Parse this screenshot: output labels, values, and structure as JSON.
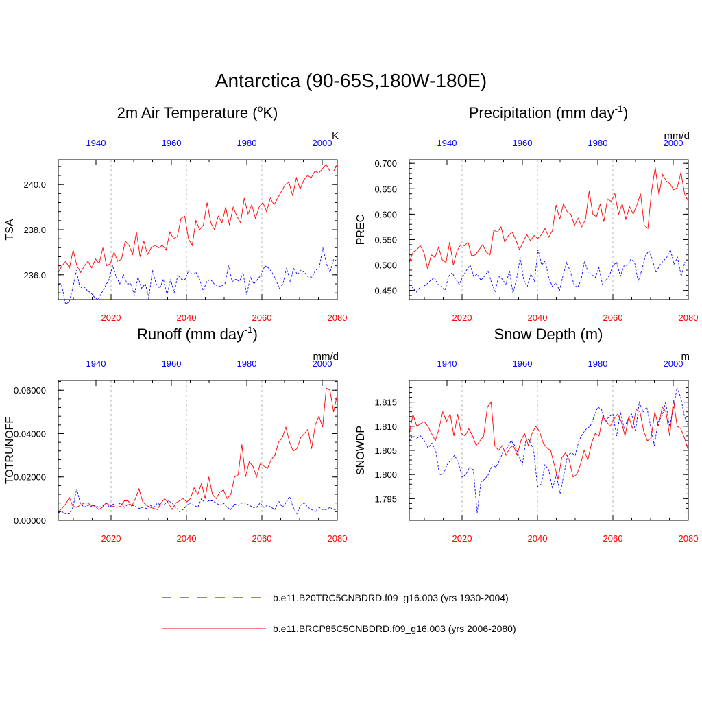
{
  "title": "Antarctica (90-65S,180W-180E)",
  "colors": {
    "present": "#ff0000",
    "past": "#0000ff",
    "grid": "#b0b0b0"
  },
  "legend": [
    {
      "label": "b.e11.B20TRC5CNBDRD.f09_g16.003 (yrs 1930-2004)",
      "style": "dashed",
      "color": "#0000ff"
    },
    {
      "label": "b.e11.BRCP85C5CNBDRD.f09_g16.003 (yrs 2006-2080)",
      "style": "solid",
      "color": "#ff0000"
    }
  ],
  "chart_data": [
    {
      "type": "line",
      "title_main": "2m Air Temperature (",
      "title_sup": "o",
      "title_end": "K)",
      "ylabel": "TSA",
      "units": "K",
      "bottom_axis": {
        "range": [
          2006,
          2080
        ],
        "ticks": [
          "2020",
          "2040",
          "2060",
          "2080"
        ],
        "tick_values": [
          2020,
          2040,
          2060,
          2080
        ]
      },
      "top_axis": {
        "range": [
          1930,
          2004
        ],
        "ticks": [
          "1940",
          "1960",
          "1980",
          "2000"
        ],
        "tick_values": [
          1940,
          1960,
          1980,
          2000
        ]
      },
      "ylim": [
        234.9,
        241.1
      ],
      "yticks": [
        "236.0",
        "238.0",
        "240.0"
      ],
      "ytick_values": [
        236.0,
        238.0,
        240.0
      ],
      "series": [
        {
          "key": "past",
          "values": [
            235.6,
            235.5,
            234.7,
            234.8,
            235.4,
            236.2,
            235.4,
            235.5,
            235.3,
            235.2,
            235.0,
            234.9,
            235.2,
            235.5,
            235.8,
            236.4,
            235.9,
            235.6,
            236.0,
            235.6,
            235.6,
            235.1,
            235.9,
            235.4,
            235.6,
            235.0,
            236.2,
            235.6,
            235.4,
            235.8,
            235.1,
            235.8,
            235.2,
            236.0,
            235.8,
            235.8,
            236.2,
            236.0,
            236.1,
            235.8,
            235.3,
            235.7,
            235.8,
            235.6,
            235.5,
            235.5,
            235.6,
            236.4,
            235.7,
            235.8,
            235.7,
            236.1,
            235.1,
            235.9,
            235.6,
            235.8,
            236.0,
            236.4,
            236.3,
            236.1,
            235.8,
            235.4,
            235.6,
            236.3,
            235.7,
            236.3,
            236.0,
            236.2,
            236.1,
            235.9,
            235.9,
            236.2,
            236.3,
            237.2,
            236.5,
            236.1,
            236.7,
            236.6
          ]
        },
        {
          "key": "present",
          "values": [
            236.1,
            236.4,
            236.6,
            236.3,
            237.1,
            236.4,
            236.1,
            236.4,
            236.6,
            236.3,
            236.7,
            236.5,
            237.2,
            236.4,
            236.5,
            237.0,
            236.6,
            236.7,
            237.5,
            237.3,
            236.9,
            237.9,
            236.8,
            237.5,
            236.9,
            237.2,
            237.3,
            237.2,
            237.3,
            237.1,
            237.9,
            237.6,
            237.7,
            238.5,
            238.6,
            237.6,
            237.3,
            238.4,
            238.0,
            238.2,
            239.2,
            238.3,
            238.0,
            238.6,
            238.3,
            239.0,
            238.2,
            239.0,
            238.6,
            238.3,
            239.4,
            238.7,
            239.1,
            238.5,
            239.0,
            239.2,
            238.8,
            239.4,
            239.1,
            239.4,
            239.7,
            240.0,
            240.1,
            239.5,
            240.3,
            239.8,
            240.2,
            240.4,
            240.3,
            240.6,
            240.5,
            240.7,
            240.9,
            240.6,
            240.6,
            240.9
          ]
        }
      ]
    },
    {
      "type": "line",
      "title_main": "Precipitation (mm day",
      "title_sup": "-1",
      "title_end": ")",
      "ylabel": "PREC",
      "units": "mm/d",
      "bottom_axis": {
        "range": [
          2006,
          2080
        ],
        "ticks": [
          "2020",
          "2040",
          "2060",
          "2080"
        ],
        "tick_values": [
          2020,
          2040,
          2060,
          2080
        ]
      },
      "top_axis": {
        "range": [
          1930,
          2004
        ],
        "ticks": [
          "1940",
          "1960",
          "1980",
          "2000"
        ],
        "tick_values": [
          1940,
          1960,
          1980,
          2000
        ]
      },
      "ylim": [
        0.432,
        0.707
      ],
      "yticks": [
        "0.450",
        "0.500",
        "0.550",
        "0.600",
        "0.650",
        "0.700"
      ],
      "ytick_values": [
        0.45,
        0.5,
        0.55,
        0.6,
        0.65,
        0.7
      ],
      "series": [
        {
          "key": "past",
          "values": [
            0.462,
            0.455,
            0.447,
            0.456,
            0.458,
            0.463,
            0.47,
            0.475,
            0.462,
            0.458,
            0.45,
            0.478,
            0.485,
            0.472,
            0.462,
            0.478,
            0.49,
            0.5,
            0.478,
            0.482,
            0.47,
            0.478,
            0.488,
            0.465,
            0.448,
            0.478,
            0.472,
            0.462,
            0.488,
            0.445,
            0.472,
            0.515,
            0.47,
            0.458,
            0.482,
            0.468,
            0.53,
            0.5,
            0.508,
            0.475,
            0.458,
            0.465,
            0.45,
            0.48,
            0.505,
            0.488,
            0.463,
            0.455,
            0.47,
            0.508,
            0.485,
            0.482,
            0.475,
            0.495,
            0.462,
            0.47,
            0.48,
            0.5,
            0.505,
            0.478,
            0.498,
            0.5,
            0.512,
            0.505,
            0.468,
            0.49,
            0.518,
            0.528,
            0.51,
            0.485,
            0.5,
            0.508,
            0.515,
            0.53,
            0.502,
            0.515,
            0.478,
            0.505,
            0.502
          ]
        },
        {
          "key": "present",
          "values": [
            0.505,
            0.525,
            0.53,
            0.538,
            0.525,
            0.492,
            0.52,
            0.515,
            0.535,
            0.51,
            0.505,
            0.545,
            0.5,
            0.528,
            0.54,
            0.538,
            0.545,
            0.518,
            0.52,
            0.53,
            0.54,
            0.525,
            0.52,
            0.568,
            0.565,
            0.575,
            0.545,
            0.558,
            0.565,
            0.55,
            0.53,
            0.545,
            0.56,
            0.548,
            0.558,
            0.552,
            0.56,
            0.572,
            0.555,
            0.568,
            0.618,
            0.59,
            0.62,
            0.605,
            0.6,
            0.578,
            0.592,
            0.575,
            0.59,
            0.645,
            0.6,
            0.595,
            0.62,
            0.585,
            0.63,
            0.625,
            0.64,
            0.6,
            0.62,
            0.59,
            0.615,
            0.6,
            0.618,
            0.64,
            0.578,
            0.572,
            0.645,
            0.692,
            0.638,
            0.678,
            0.665,
            0.66,
            0.648,
            0.652,
            0.682,
            0.64,
            0.625
          ]
        }
      ]
    },
    {
      "type": "line",
      "title_main": "Runoff (mm day",
      "title_sup": "-1",
      "title_end": ")",
      "ylabel": "TOTRUNOFF",
      "units": "mm/d",
      "bottom_axis": {
        "range": [
          2006,
          2080
        ],
        "ticks": [
          "2020",
          "2040",
          "2060",
          "2080"
        ],
        "tick_values": [
          2020,
          2040,
          2060,
          2080
        ]
      },
      "top_axis": {
        "range": [
          1930,
          2004
        ],
        "ticks": [
          "1940",
          "1960",
          "1980",
          "2000"
        ],
        "tick_values": [
          1940,
          1960,
          1980,
          2000
        ]
      },
      "ylim": [
        0.0,
        0.0645
      ],
      "yticks": [
        "0.00000",
        "0.02000",
        "0.04000",
        "0.06000"
      ],
      "ytick_values": [
        0.0,
        0.02,
        0.04,
        0.06
      ],
      "series": [
        {
          "key": "past",
          "values": [
            0.0035,
            0.004,
            0.003,
            0.003,
            0.006,
            0.0145,
            0.008,
            0.006,
            0.007,
            0.0065,
            0.007,
            0.006,
            0.0065,
            0.008,
            0.006,
            0.0075,
            0.007,
            0.008,
            0.006,
            0.0075,
            0.007,
            0.0065,
            0.0055,
            0.006,
            0.0055,
            0.007,
            0.006,
            0.008,
            0.007,
            0.0075,
            0.009,
            0.008,
            0.006,
            0.004,
            0.005,
            0.007,
            0.008,
            0.007,
            0.006,
            0.01,
            0.008,
            0.009,
            0.009,
            0.008,
            0.007,
            0.008,
            0.006,
            0.005,
            0.0075,
            0.007,
            0.008,
            0.008,
            0.007,
            0.006,
            0.006,
            0.008,
            0.006,
            0.007,
            0.006,
            0.005,
            0.009,
            0.006,
            0.008,
            0.011,
            0.006,
            0.003,
            0.007,
            0.008,
            0.006,
            0.005,
            0.004,
            0.006,
            0.005,
            0.005,
            0.006,
            0.005,
            0.005
          ]
        },
        {
          "key": "present",
          "values": [
            0.004,
            0.0055,
            0.0075,
            0.0105,
            0.0065,
            0.006,
            0.007,
            0.008,
            0.008,
            0.007,
            0.0065,
            0.005,
            0.006,
            0.008,
            0.007,
            0.0065,
            0.006,
            0.0065,
            0.009,
            0.009,
            0.0065,
            0.01,
            0.0145,
            0.0085,
            0.007,
            0.006,
            0.0055,
            0.005,
            0.008,
            0.01,
            0.008,
            0.005,
            0.008,
            0.009,
            0.01,
            0.0085,
            0.01,
            0.015,
            0.012,
            0.017,
            0.01,
            0.02,
            0.012,
            0.01,
            0.013,
            0.014,
            0.01,
            0.012,
            0.02,
            0.021,
            0.035,
            0.02,
            0.027,
            0.025,
            0.02,
            0.026,
            0.025,
            0.024,
            0.028,
            0.03,
            0.036,
            0.038,
            0.043,
            0.036,
            0.032,
            0.033,
            0.038,
            0.04,
            0.042,
            0.033,
            0.044,
            0.048,
            0.043,
            0.061,
            0.06,
            0.05,
            0.058
          ]
        }
      ]
    },
    {
      "type": "line",
      "title_main": "Snow Depth (m)",
      "title_sup": "",
      "title_end": "",
      "ylabel": "SNOWDP",
      "units": "m",
      "bottom_axis": {
        "range": [
          2006,
          2080
        ],
        "ticks": [
          "2020",
          "2040",
          "2060",
          "2080"
        ],
        "tick_values": [
          2020,
          2040,
          2060,
          2080
        ]
      },
      "top_axis": {
        "range": [
          1930,
          2004
        ],
        "ticks": [
          "1940",
          "1960",
          "1980",
          "2000"
        ],
        "tick_values": [
          1940,
          1960,
          1980,
          2000
        ]
      },
      "ylim": [
        1.7905,
        1.8195
      ],
      "yticks": [
        "1.795",
        "1.800",
        "1.805",
        "1.810",
        "1.815"
      ],
      "ytick_values": [
        1.795,
        1.8,
        1.805,
        1.81,
        1.815
      ],
      "series": [
        {
          "key": "past",
          "values": [
            1.807,
            1.808,
            1.8075,
            1.808,
            1.807,
            1.8055,
            1.8065,
            1.805,
            1.8,
            1.8,
            1.802,
            1.803,
            1.804,
            1.8025,
            1.7995,
            1.8,
            1.8015,
            1.801,
            1.792,
            1.7985,
            1.799,
            1.8,
            1.802,
            1.8015,
            1.803,
            1.805,
            1.8055,
            1.807,
            1.806,
            1.804,
            1.802,
            1.8075,
            1.807,
            1.805,
            1.7975,
            1.798,
            1.802,
            1.801,
            1.797,
            1.8,
            1.796,
            1.8,
            1.804,
            1.8045,
            1.804,
            1.807,
            1.8085,
            1.8095,
            1.81,
            1.812,
            1.814,
            1.8135,
            1.811,
            1.812,
            1.8125,
            1.808,
            1.813,
            1.8095,
            1.8115,
            1.8125,
            1.809,
            1.815,
            1.813,
            1.814,
            1.81,
            1.806,
            1.811,
            1.812,
            1.815,
            1.81,
            1.8135,
            1.818,
            1.816,
            1.812,
            1.81
          ]
        },
        {
          "key": "present",
          "values": [
            1.8085,
            1.8125,
            1.81,
            1.8105,
            1.811,
            1.81,
            1.8085,
            1.807,
            1.8095,
            1.813,
            1.811,
            1.8125,
            1.808,
            1.8125,
            1.8085,
            1.808,
            1.8095,
            1.808,
            1.806,
            1.807,
            1.808,
            1.814,
            1.815,
            1.806,
            1.805,
            1.806,
            1.804,
            1.8055,
            1.806,
            1.804,
            1.807,
            1.8085,
            1.806,
            1.8085,
            1.81,
            1.809,
            1.8065,
            1.8055,
            1.805,
            1.802,
            1.799,
            1.8035,
            1.8045,
            1.803,
            1.7995,
            1.8,
            1.802,
            1.805,
            1.803,
            1.8065,
            1.8085,
            1.808,
            1.812,
            1.811,
            1.81,
            1.8115,
            1.8125,
            1.811,
            1.808,
            1.812,
            1.8095,
            1.8135,
            1.813,
            1.809,
            1.807,
            1.8075,
            1.813,
            1.81,
            1.814,
            1.813,
            1.808,
            1.8155,
            1.81,
            1.8095,
            1.8075,
            1.805
          ]
        }
      ]
    }
  ]
}
